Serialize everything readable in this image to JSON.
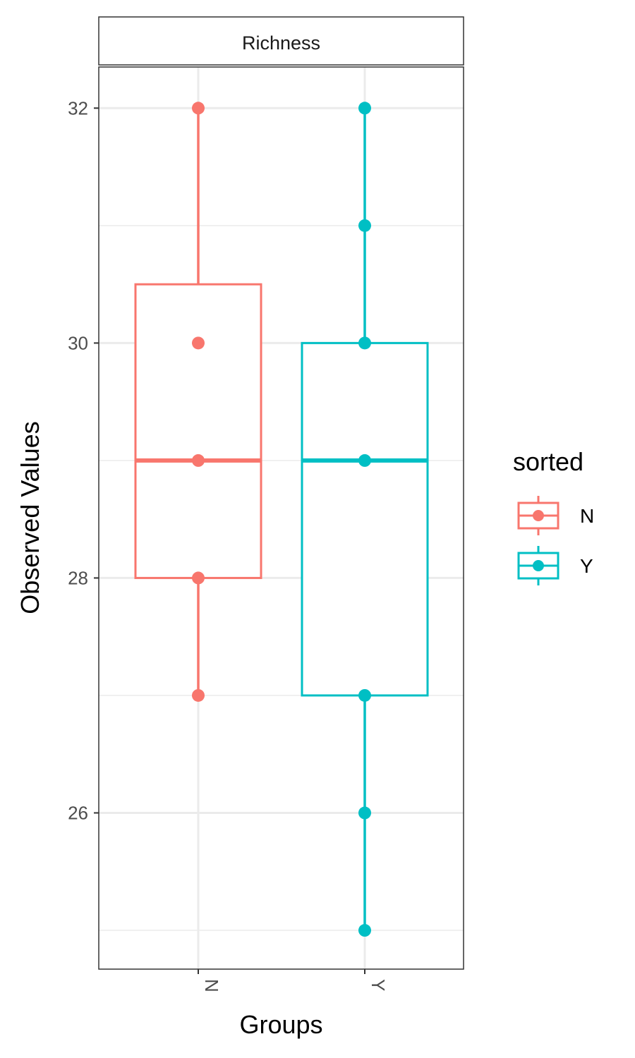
{
  "chart_data": {
    "type": "box",
    "facet_label": "Richness",
    "xlabel": "Groups",
    "ylabel": "Observed Values",
    "categories": [
      "N",
      "Y"
    ],
    "y_ticks": [
      26,
      28,
      30,
      32
    ],
    "y_minor": [
      25,
      27,
      29,
      31
    ],
    "ylim": [
      24.67,
      32.35
    ],
    "grid": true,
    "legend": {
      "title": "sorted",
      "position": "right",
      "entries": [
        "N",
        "Y"
      ]
    },
    "series": [
      {
        "name": "N",
        "color": "#F8766D",
        "box": {
          "lower_whisker": 27,
          "q1": 28,
          "median": 29,
          "q3": 30.5,
          "upper_whisker": 32
        },
        "points": [
          27,
          28,
          29,
          30,
          32
        ]
      },
      {
        "name": "Y",
        "color": "#00BFC4",
        "box": {
          "lower_whisker": 25,
          "q1": 27,
          "median": 29,
          "q3": 30,
          "upper_whisker": 32
        },
        "points": [
          25,
          26,
          27,
          29,
          30,
          31,
          32
        ]
      }
    ]
  }
}
